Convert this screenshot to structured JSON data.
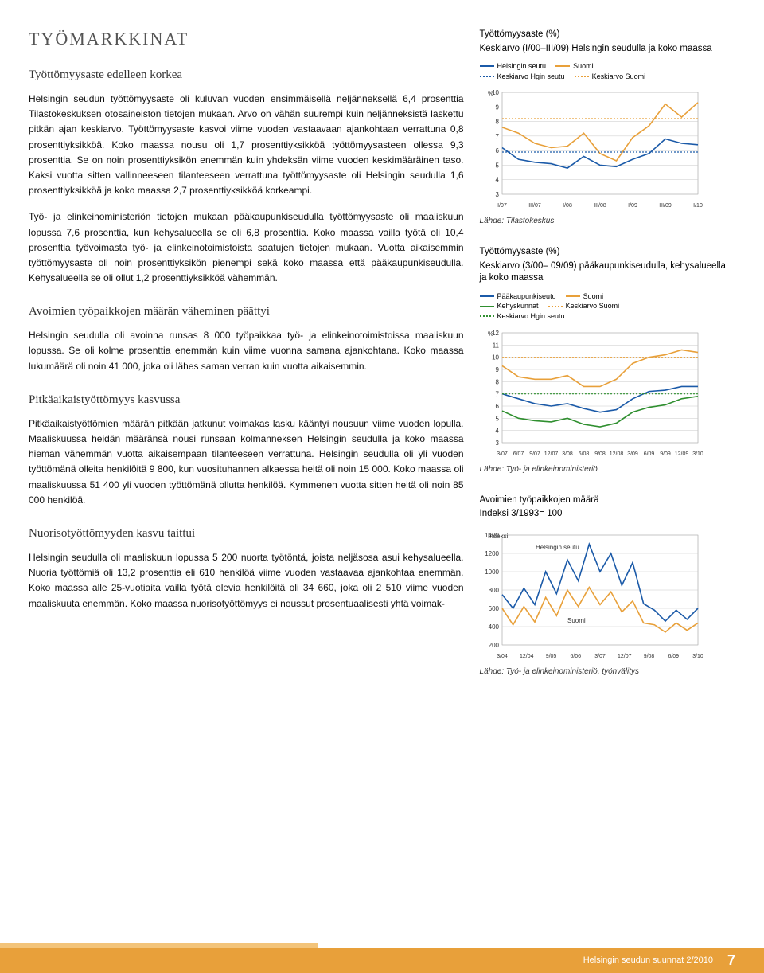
{
  "header": {
    "section_title": "TYÖMARKKINAT"
  },
  "left": {
    "subhead1": "Työttömyysaste edelleen korkea",
    "p1": "Helsingin seudun työttömyysaste oli kuluvan vuoden ensimmäisellä neljänneksellä 6,4 prosenttia Tilastokeskuksen otosaineiston tietojen mukaan. Arvo on vähän suurempi kuin neljänneksistä laskettu pitkän ajan keskiarvo. Työttömyysaste kasvoi viime vuoden vastaavaan ajankohtaan verrattuna 0,8 prosenttiyksikköä. Koko maassa nousu oli 1,7 prosenttiyksikköä työttömyysasteen ollessa 9,3 prosenttia. Se on noin prosenttiyksikön enemmän kuin yhdeksän viime vuoden keskimääräinen taso. Kaksi vuotta sitten vallinneeseen tilanteeseen verrattuna työttömyysaste oli Helsingin seudulla 1,6 prosenttiyksikköä ja koko maassa 2,7 prosenttiyksikköä korkeampi.",
    "p2": "Työ- ja elinkeinoministeriön tietojen mukaan pääkaupunkiseudulla työttömyysaste oli maaliskuun lopussa 7,6 prosenttia, kun kehysalueella se oli 6,8 prosenttia. Koko maassa vailla työtä oli 10,4 prosenttia työvoimasta työ- ja elinkeinotoimistoista saatujen tietojen mukaan. Vuotta aikaisemmin työttömyysaste oli noin prosenttiyksikön pienempi sekä koko maassa että pääkaupunkiseudulla. Kehysalueella se oli ollut 1,2 prosenttiyksikköä vähemmän.",
    "subhead2": "Avoimien työpaikkojen määrän väheminen päättyi",
    "p3": "Helsingin seudulla oli avoinna runsas 8 000 työpaikkaa työ- ja elinkeinotoimistoissa maaliskuun lopussa. Se oli kolme prosenttia enemmän kuin viime vuonna samana ajankohtana. Koko maassa lukumäärä oli noin 41 000, joka oli lähes saman verran kuin vuotta aikaisemmin.",
    "subhead3": "Pitkäaikaistyöttömyys kasvussa",
    "p4": "Pitkäaikaistyöttömien määrän pitkään jatkunut voimakas lasku kääntyi nousuun viime vuoden lopulla. Maaliskuussa heidän määränsä nousi runsaan kolmanneksen Helsingin seudulla ja koko maassa hieman vähemmän vuotta aikaisempaan tilanteeseen verrattuna. Helsingin seudulla oli yli vuoden työttömänä olleita henkilöitä 9 800, kun vuosituhannen alkaessa heitä oli noin 15 000. Koko maassa oli maaliskuussa 51 400 yli vuoden työttömänä ollutta henkilöä. Kymmenen vuotta sitten heitä oli noin 85 000 henkilöä.",
    "subhead4": "Nuorisotyöttömyyden kasvu taittui",
    "p5": "Helsingin seudulla oli maaliskuun lopussa 5 200 nuorta työtöntä, joista neljäsosa asui kehysalueella. Nuoria työttömiä oli 13,2 prosenttia eli 610 henkilöä viime vuoden vastaavaa ajankohtaa enemmän. Koko maassa alle 25-vuotiaita vailla työtä olevia henkilöitä oli 34 660, joka oli 2 510 viime vuoden maaliskuuta enemmän. Koko maassa nuorisotyöttömyys ei noussut prosentuaalisesti yhtä voimak-"
  },
  "right": {
    "chart1": {
      "title": "Työttömyysaste (%)",
      "subtitle": "Keskiarvo (I/00–III/09) Helsingin seudulla ja koko maassa",
      "legend": {
        "s1": "Helsingin seutu",
        "s2": "Suomi",
        "s3": "Keskiarvo Hgin seutu",
        "s4": "Keskiarvo Suomi"
      },
      "ylabel": "%",
      "ylim": [
        3,
        10
      ],
      "ytick": [
        3,
        4,
        5,
        6,
        7,
        8,
        9,
        10
      ],
      "xlabels": [
        "I/07",
        "III/07",
        "I/08",
        "III/08",
        "I/09",
        "III/09",
        "I/10"
      ],
      "colors": {
        "hseutu": "#1b5aa8",
        "suomi": "#e8a03a",
        "kahg": "#1b5aa8",
        "kasu": "#e8a03a",
        "bg": "#ffffff",
        "grid": "#c8c8c8"
      },
      "series": {
        "hseutu": [
          6.2,
          5.4,
          5.2,
          5.1,
          4.8,
          5.6,
          5.0,
          4.9,
          5.4,
          5.8,
          6.8,
          6.5,
          6.4
        ],
        "suomi": [
          7.6,
          7.2,
          6.5,
          6.2,
          6.3,
          7.2,
          5.8,
          5.3,
          6.9,
          7.7,
          9.2,
          8.3,
          9.3
        ],
        "kahg": 5.9,
        "kasu": 8.2
      },
      "source": "Lähde: Tilastokeskus"
    },
    "chart2": {
      "title": "Työttömyysaste (%)",
      "subtitle": "Keskiarvo (3/00– 09/09) pääkaupunkiseudulla, kehysalueella ja koko maassa",
      "legend": {
        "s1": "Pääkaupunkiseutu",
        "s2": "Suomi",
        "s3": "Kehyskunnat",
        "s4": "Keskiarvo Suomi",
        "s5": "Keskiarvo Hgin seutu"
      },
      "ylabel": "%",
      "ylim": [
        3,
        12
      ],
      "ytick": [
        3,
        4,
        5,
        6,
        7,
        8,
        9,
        10,
        11,
        12
      ],
      "xlabels": [
        "3/07",
        "6/07",
        "9/07",
        "12/07",
        "3/08",
        "6/08",
        "9/08",
        "12/08",
        "3/09",
        "6/09",
        "9/09",
        "12/09",
        "3/10"
      ],
      "colors": {
        "pk": "#1b5aa8",
        "suomi": "#e8a03a",
        "kehys": "#2f8f2f",
        "kasu": "#e8a03a",
        "kahg": "#2f8f2f",
        "bg": "#ffffff",
        "grid": "#c8c8c8"
      },
      "series": {
        "pk": [
          7.0,
          6.6,
          6.2,
          6.0,
          6.2,
          5.8,
          5.5,
          5.7,
          6.6,
          7.2,
          7.3,
          7.6,
          7.6
        ],
        "kehys": [
          5.6,
          5.0,
          4.8,
          4.7,
          5.0,
          4.5,
          4.3,
          4.6,
          5.5,
          5.9,
          6.1,
          6.6,
          6.8
        ],
        "suomi": [
          9.3,
          8.4,
          8.2,
          8.2,
          8.5,
          7.6,
          7.6,
          8.2,
          9.5,
          10.0,
          10.2,
          10.6,
          10.4
        ],
        "kasu": 10.0,
        "kahg": 7.0
      },
      "source": "Lähde: Työ- ja elinkeinoministeriö"
    },
    "chart3": {
      "title": "Avoimien työpaikkojen määrä",
      "subtitle": "Indeksi 3/1993= 100",
      "ylabel": "Indeksi",
      "ylim": [
        200,
        1400
      ],
      "ytick": [
        200,
        400,
        600,
        800,
        1000,
        1200,
        1400
      ],
      "xlabels": [
        "3/04",
        "12/04",
        "9/05",
        "6/06",
        "3/07",
        "12/07",
        "9/08",
        "6/09",
        "3/10"
      ],
      "legend": {
        "s1": "Helsingin seutu",
        "s2": "Suomi"
      },
      "colors": {
        "hseutu": "#1b5aa8",
        "suomi": "#e8a03a",
        "bg": "#ffffff",
        "grid": "#c8c8c8"
      },
      "series": {
        "hseutu": [
          750,
          600,
          820,
          640,
          1000,
          760,
          1130,
          900,
          1300,
          1000,
          1200,
          850,
          1100,
          650,
          580,
          460,
          580,
          480,
          600
        ],
        "suomi": [
          600,
          420,
          620,
          450,
          720,
          520,
          800,
          620,
          830,
          640,
          780,
          560,
          680,
          440,
          420,
          340,
          440,
          360,
          440
        ]
      },
      "source": "Lähde: Työ- ja elinkeinoministeriö, työnvälitys"
    }
  },
  "footer": {
    "pub": "Helsingin seudun suunnat 2/2010",
    "page": "7"
  }
}
